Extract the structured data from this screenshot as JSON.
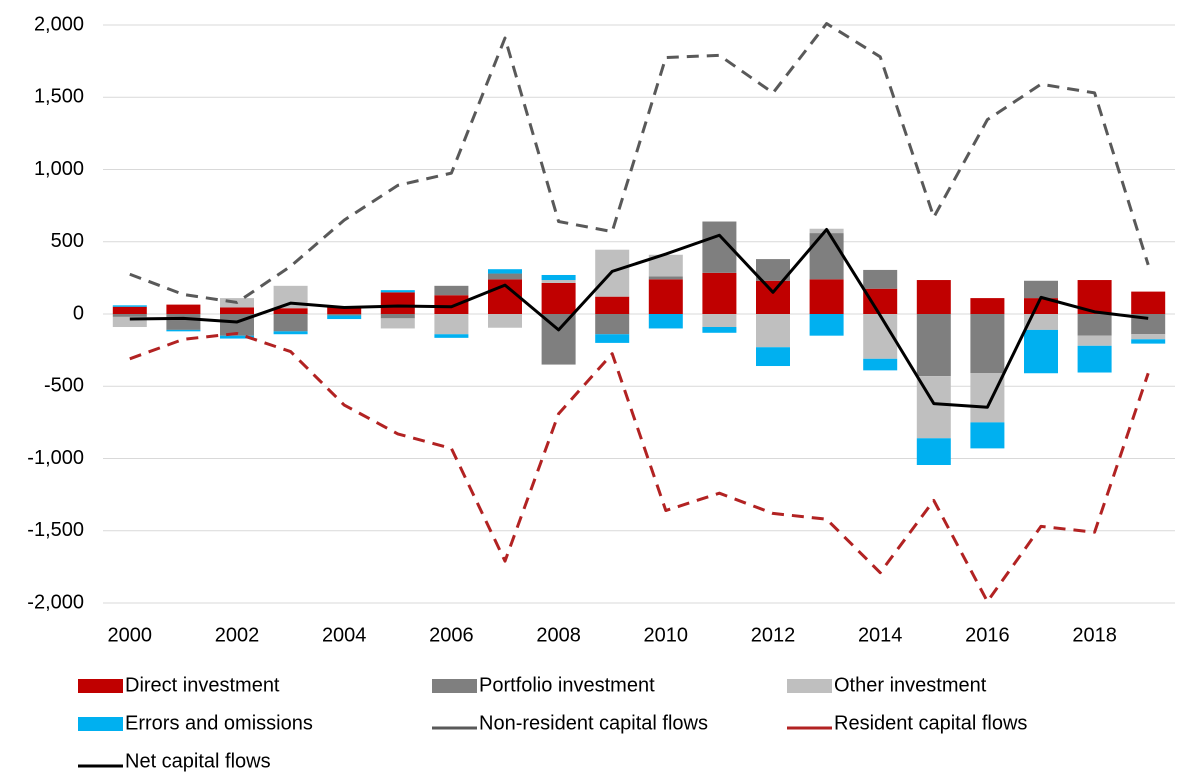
{
  "chart_data": {
    "type": "bar-line",
    "categories": [
      "2000",
      null,
      "2002",
      null,
      "2004",
      null,
      "2006",
      null,
      "2008",
      null,
      "2010",
      null,
      "2012",
      null,
      "2014",
      null,
      "2016",
      null,
      "2018",
      null
    ],
    "ylim": [
      -2000,
      2000
    ],
    "yticks": [
      {
        "value": -2000,
        "label": "-2,000"
      },
      {
        "value": -1500,
        "label": "-1,500"
      },
      {
        "value": -1000,
        "label": "-1,000"
      },
      -500,
      0,
      500,
      {
        "value": 1000,
        "label": "1,000"
      },
      {
        "value": 1500,
        "label": "1,500"
      },
      {
        "value": 2000,
        "label": "2,000"
      }
    ],
    "grid": true,
    "legend": "bottom",
    "series": [
      {
        "name": "Direct investment",
        "kind": "bar",
        "color": "#c00000",
        "values": [
          50,
          65,
          45,
          40,
          50,
          150,
          130,
          240,
          215,
          120,
          240,
          285,
          230,
          240,
          175,
          235,
          110,
          110,
          235,
          155
        ]
      },
      {
        "name": "Portfolio investment",
        "kind": "bar",
        "color": "#7f7f7f",
        "values": [
          -20,
          -110,
          -150,
          -120,
          -10,
          -30,
          65,
          40,
          -350,
          -140,
          20,
          355,
          150,
          320,
          130,
          -430,
          -410,
          120,
          -150,
          -140
        ]
      },
      {
        "name": "Other investment",
        "kind": "bar",
        "color": "#bfbfbf",
        "values": [
          -70,
          0,
          65,
          155,
          0,
          -70,
          -140,
          -95,
          20,
          325,
          150,
          -90,
          -230,
          30,
          -310,
          -430,
          -340,
          -110,
          -70,
          -35
        ]
      },
      {
        "name": "Errors and omissions",
        "kind": "bar",
        "color": "#00b0f0",
        "values": [
          10,
          -10,
          -20,
          -20,
          -25,
          15,
          -25,
          30,
          35,
          -60,
          -100,
          -40,
          -130,
          -150,
          -80,
          -185,
          -180,
          -300,
          -185,
          -30
        ]
      },
      {
        "name": "Non-resident capital flows",
        "kind": "line",
        "dashed": true,
        "color": "#595959",
        "values": [
          275,
          135,
          80,
          330,
          650,
          890,
          975,
          1910,
          640,
          570,
          1775,
          1790,
          1530,
          2010,
          1780,
          670,
          1345,
          1590,
          1530,
          340
        ]
      },
      {
        "name": "Resident capital flows",
        "kind": "line",
        "dashed": true,
        "color": "#b22222",
        "values": [
          -310,
          -175,
          -135,
          -260,
          -630,
          -830,
          -930,
          -1710,
          -690,
          -275,
          -1360,
          -1240,
          -1380,
          -1420,
          -1790,
          -1290,
          -1990,
          -1470,
          -1510,
          -410
        ]
      },
      {
        "name": "Net capital flows",
        "kind": "line",
        "dashed": false,
        "color": "#000000",
        "values": [
          -35,
          -30,
          -55,
          75,
          45,
          55,
          50,
          200,
          -110,
          295,
          415,
          545,
          150,
          585,
          -10,
          -620,
          -645,
          115,
          15,
          -30
        ]
      }
    ]
  }
}
